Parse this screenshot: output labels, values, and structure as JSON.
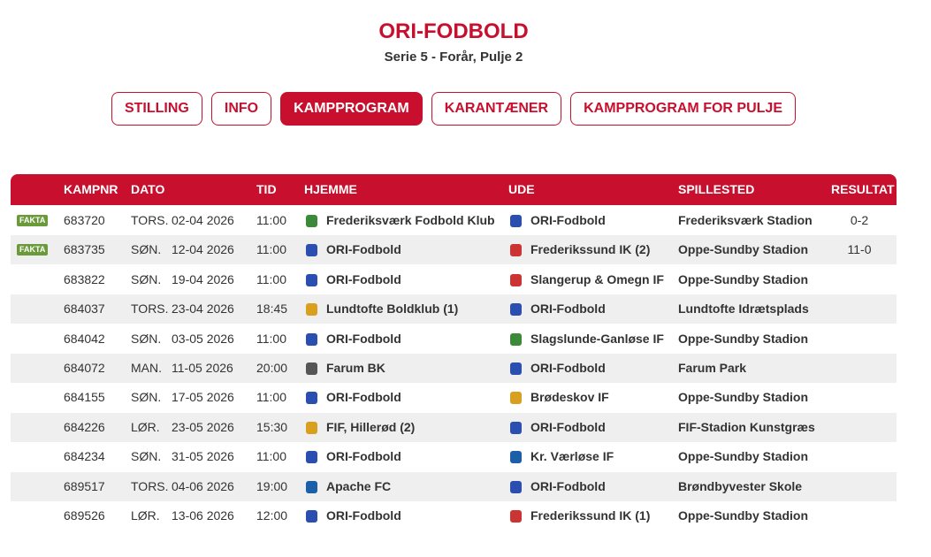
{
  "header": {
    "title": "ORI-FODBOLD",
    "subtitle": "Serie 5 - Forår, Pulje 2"
  },
  "tabs": {
    "items": [
      "STILLING",
      "INFO",
      "KAMPPROGRAM",
      "KARANTÆNER",
      "KAMPPROGRAM FOR PULJE"
    ],
    "active": 2
  },
  "table": {
    "columns": [
      "KAMPNR",
      "DATO",
      "TID",
      "HJEMME",
      "UDE",
      "SPILLESTED",
      "RESULTAT"
    ],
    "rows": [
      {
        "badge": "FAKTA",
        "kampnr": "683720",
        "day": "TORS.",
        "date": "02-04 2026",
        "time": "11:00",
        "home": "Frederiksværk Fodbold Klub",
        "away": "ORI-Fodbold",
        "venue": "Frederiksværk Stadion",
        "result": "0-2"
      },
      {
        "badge": "FAKTA",
        "kampnr": "683735",
        "day": "SØN.",
        "date": "12-04 2026",
        "time": "11:00",
        "home": "ORI-Fodbold",
        "away": "Frederikssund IK (2)",
        "venue": "Oppe-Sundby Stadion",
        "result": "11-0"
      },
      {
        "kampnr": "683822",
        "day": "SØN.",
        "date": "19-04 2026",
        "time": "11:00",
        "home": "ORI-Fodbold",
        "away": "Slangerup & Omegn IF",
        "venue": "Oppe-Sundby Stadion"
      },
      {
        "kampnr": "684037",
        "day": "TORS.",
        "date": "23-04 2026",
        "time": "18:45",
        "home": "Lundtofte Boldklub (1)",
        "away": "ORI-Fodbold",
        "venue": "Lundtofte Idrætsplads"
      },
      {
        "kampnr": "684042",
        "day": "SØN.",
        "date": "03-05 2026",
        "time": "11:00",
        "home": "ORI-Fodbold",
        "away": "Slagslunde-Ganløse IF",
        "venue": "Oppe-Sundby Stadion"
      },
      {
        "kampnr": "684072",
        "day": "MAN.",
        "date": "11-05 2026",
        "time": "20:00",
        "home": "Farum BK",
        "away": "ORI-Fodbold",
        "venue": "Farum Park"
      },
      {
        "kampnr": "684155",
        "day": "SØN.",
        "date": "17-05 2026",
        "time": "11:00",
        "home": "ORI-Fodbold",
        "away": "Brødeskov IF",
        "venue": "Oppe-Sundby Stadion"
      },
      {
        "kampnr": "684226",
        "day": "LØR.",
        "date": "23-05 2026",
        "time": "15:30",
        "home": "FIF, Hillerød (2)",
        "away": "ORI-Fodbold",
        "venue": "FIF-Stadion Kunstgræs"
      },
      {
        "kampnr": "684234",
        "day": "SØN.",
        "date": "31-05 2026",
        "time": "11:00",
        "home": "ORI-Fodbold",
        "away": "Kr. Værløse IF",
        "venue": "Oppe-Sundby Stadion"
      },
      {
        "kampnr": "689517",
        "day": "TORS.",
        "date": "04-06 2026",
        "time": "19:00",
        "home": "Apache FC",
        "away": "ORI-Fodbold",
        "venue": "Brøndbyvester Skole"
      },
      {
        "kampnr": "689526",
        "day": "LØR.",
        "date": "13-06 2026",
        "time": "12:00",
        "home": "ORI-Fodbold",
        "away": "Frederikssund IK (1)",
        "venue": "Oppe-Sundby Stadion"
      }
    ]
  }
}
